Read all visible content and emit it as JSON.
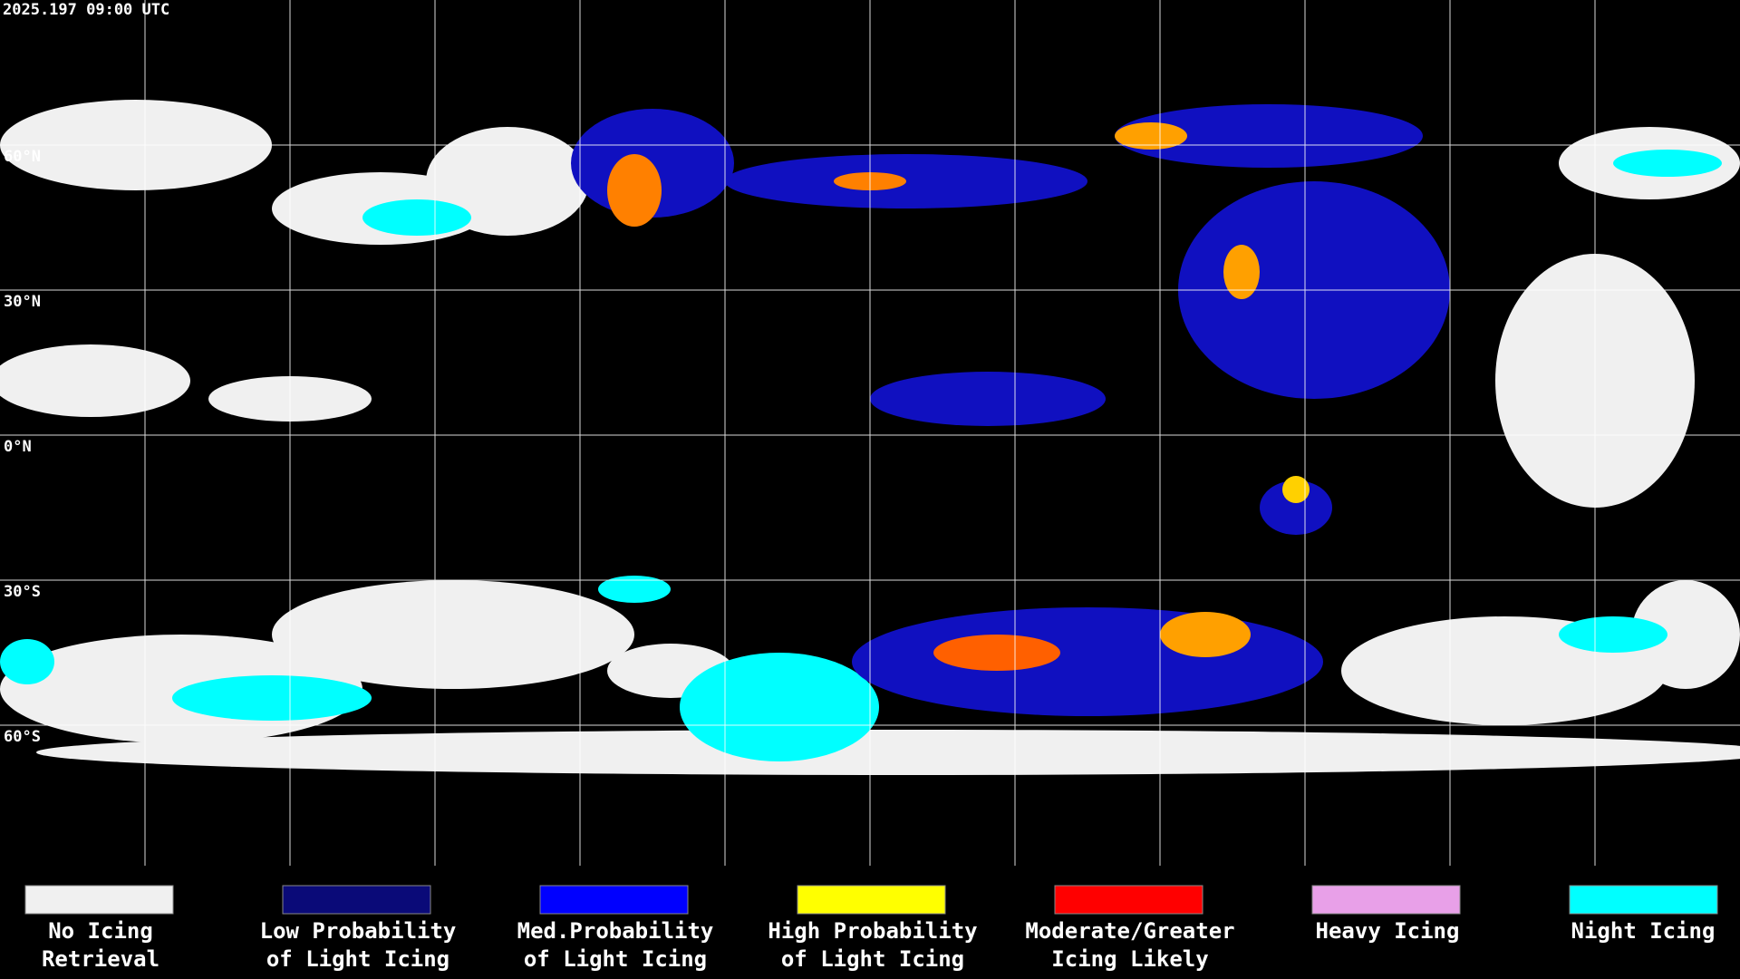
{
  "header": {
    "timestamp": "2025.197 09:00 UTC"
  },
  "map": {
    "latitude_labels": [
      "60°N",
      "30°N",
      "0°N",
      "30°S",
      "60°S"
    ]
  },
  "legend": {
    "items": [
      {
        "color": "#f0f0f0",
        "lines": [
          "No Icing",
          "Retrieval"
        ]
      },
      {
        "color": "#0a0a78",
        "lines": [
          "Low Probability",
          "of Light Icing"
        ]
      },
      {
        "color": "#0000ff",
        "lines": [
          "Med.Probability",
          "of Light Icing"
        ]
      },
      {
        "color": "#ffff00",
        "lines": [
          "High Probability",
          "of Light Icing"
        ]
      },
      {
        "color": "#ff0000",
        "lines": [
          "Moderate/Greater",
          "Icing Likely"
        ]
      },
      {
        "color": "#e8a0e8",
        "lines": [
          "Heavy Icing"
        ]
      },
      {
        "color": "#00ffff",
        "lines": [
          "Night Icing"
        ]
      }
    ]
  }
}
